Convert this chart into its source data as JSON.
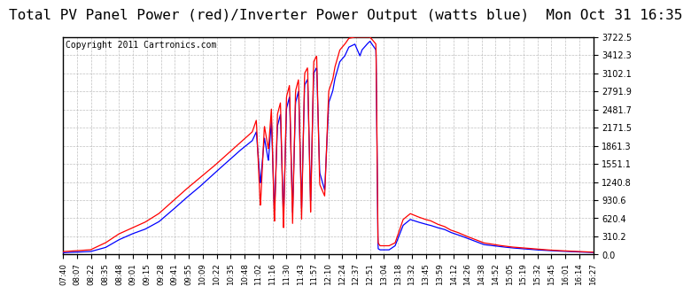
{
  "title": "Total PV Panel Power (red)/Inverter Power Output (watts blue)  Mon Oct 31 16:35",
  "copyright_text": "Copyright 2011 Cartronics.com",
  "yticks": [
    0.0,
    310.2,
    620.4,
    930.6,
    1240.8,
    1551.1,
    1861.3,
    2171.5,
    2481.7,
    2791.9,
    3102.1,
    3412.3,
    3722.5
  ],
  "xtick_labels": [
    "07:40",
    "08:07",
    "08:22",
    "08:35",
    "08:48",
    "09:01",
    "09:15",
    "09:28",
    "09:41",
    "09:55",
    "10:09",
    "10:22",
    "10:35",
    "10:48",
    "11:02",
    "11:16",
    "11:30",
    "11:43",
    "11:57",
    "12:10",
    "12:24",
    "12:37",
    "12:51",
    "13:04",
    "13:18",
    "13:32",
    "13:45",
    "13:59",
    "14:12",
    "14:26",
    "14:38",
    "14:52",
    "15:05",
    "15:19",
    "15:32",
    "15:45",
    "16:01",
    "16:14",
    "16:27"
  ],
  "bg_color": "#ffffff",
  "grid_color": "#b0b0b0",
  "line_red_color": "#ff0000",
  "line_blue_color": "#0000ff",
  "title_fontsize": 11.5,
  "copyright_fontsize": 7
}
